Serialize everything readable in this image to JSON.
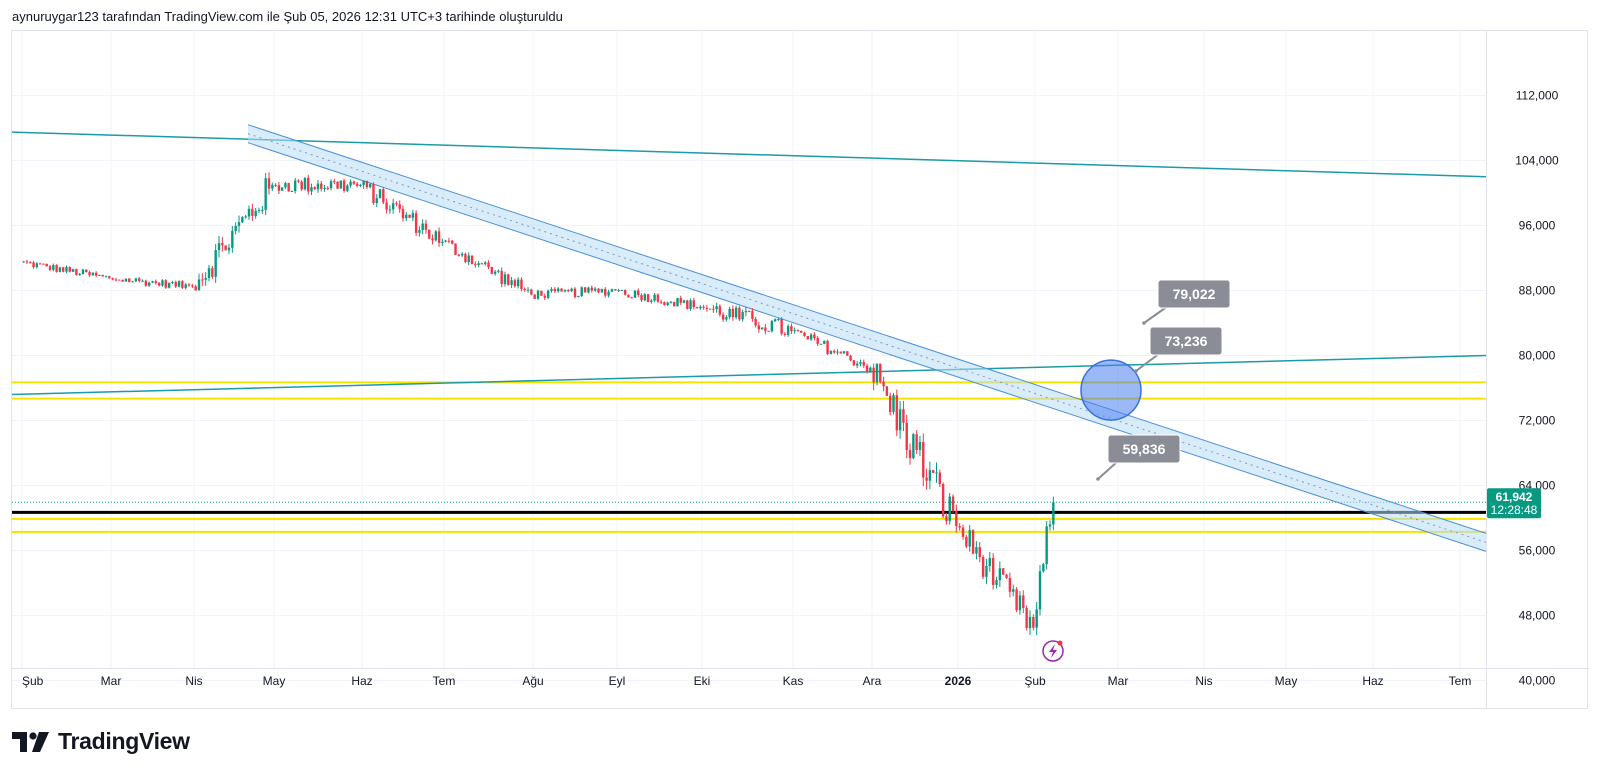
{
  "header": {
    "attribution": "aynuruygar123 tarafından TradingView.com ile Şub 05, 2026 12:31 UTC+3 tarihinde oluşturuldu"
  },
  "branding": {
    "logo_text": "TradingView"
  },
  "chart_data": {
    "type": "candlestick",
    "title": "",
    "y_axis": {
      "position": "right",
      "ylim": [
        37000,
        115000
      ],
      "ticks": [
        40000,
        48000,
        56000,
        64000,
        72000,
        80000,
        88000,
        96000,
        104000,
        112000
      ],
      "tick_labels": [
        "40,000",
        "48,000",
        "56,000",
        "64,000",
        "72,000",
        "80,000",
        "88,000",
        "96,000",
        "104,000",
        "112,000"
      ]
    },
    "x_axis": {
      "tick_labels": [
        "Şub",
        "Mar",
        "Nis",
        "May",
        "Haz",
        "Tem",
        "Ağu",
        "Eyl",
        "Eki",
        "Kas",
        "Ara",
        "2026",
        "Şub",
        "Mar",
        "Nis",
        "May",
        "Haz",
        "Tem"
      ],
      "bold_labels": [
        "2026"
      ]
    },
    "grid": true,
    "last_price": {
      "value": 61942,
      "label": "61,942",
      "countdown": "12:28:48",
      "color": "#089981"
    },
    "callouts": [
      {
        "label": "79,022",
        "price": 79022
      },
      {
        "label": "73,236",
        "price": 73236
      },
      {
        "label": "59,836",
        "price": 59836
      }
    ],
    "horizontal_lines": [
      {
        "price": 60700,
        "color": "#000000",
        "style": "solid"
      },
      {
        "price": 59900,
        "color": "#f5e300",
        "style": "solid"
      },
      {
        "price": 58300,
        "color": "#f5e300",
        "style": "solid"
      },
      {
        "price": 76700,
        "color": "#f5e300",
        "style": "solid"
      },
      {
        "price": 74700,
        "color": "#f5e300",
        "style": "solid"
      }
    ],
    "trend_lines": [
      {
        "name": "upper-teal",
        "color": "#1a9ba8",
        "from_price": 107500,
        "to_price": 102000
      },
      {
        "name": "lower-teal",
        "color": "#1a9ba8",
        "from_price": 75200,
        "to_price": 80000
      }
    ],
    "channel": {
      "color": "#4a90d9",
      "fill": "#b8dcf5",
      "from_price": 107300,
      "to_price": 57000
    },
    "marker_circle": {
      "color": "#4a7ff0",
      "price": 75500
    },
    "monthly_ohlc": [
      {
        "month": "Şub",
        "open": 91500,
        "high": 92500,
        "low": 88000,
        "close": 89500
      },
      {
        "month": "Mar",
        "open": 89500,
        "high": 92000,
        "low": 87500,
        "close": 88500
      },
      {
        "month": "Nis",
        "open": 88500,
        "high": 106000,
        "low": 88000,
        "close": 101000
      },
      {
        "month": "May",
        "open": 101000,
        "high": 106500,
        "low": 97500,
        "close": 101000
      },
      {
        "month": "Haz",
        "open": 101000,
        "high": 101500,
        "low": 90500,
        "close": 94000
      },
      {
        "month": "Tem",
        "open": 94000,
        "high": 95000,
        "low": 86500,
        "close": 87500
      },
      {
        "month": "Ağu",
        "open": 87500,
        "high": 91500,
        "low": 86000,
        "close": 88000
      },
      {
        "month": "Eyl",
        "open": 88000,
        "high": 89500,
        "low": 83500,
        "close": 86000
      },
      {
        "month": "Eki",
        "open": 86000,
        "high": 87000,
        "low": 76500,
        "close": 83000
      },
      {
        "month": "Kas",
        "open": 83000,
        "high": 84000,
        "low": 77000,
        "close": 78500
      },
      {
        "month": "Ara",
        "open": 78500,
        "high": 79000,
        "low": 54500,
        "close": 59000
      },
      {
        "month": "Oca 2026",
        "open": 59000,
        "high": 61000,
        "low": 43500,
        "close": 46500
      },
      {
        "month": "Şub 2026",
        "open": 46500,
        "high": 65500,
        "low": 45000,
        "close": 61942
      }
    ],
    "colors": {
      "up": "#089981",
      "down": "#f23645",
      "callout_bg": "#8a8d96"
    }
  }
}
